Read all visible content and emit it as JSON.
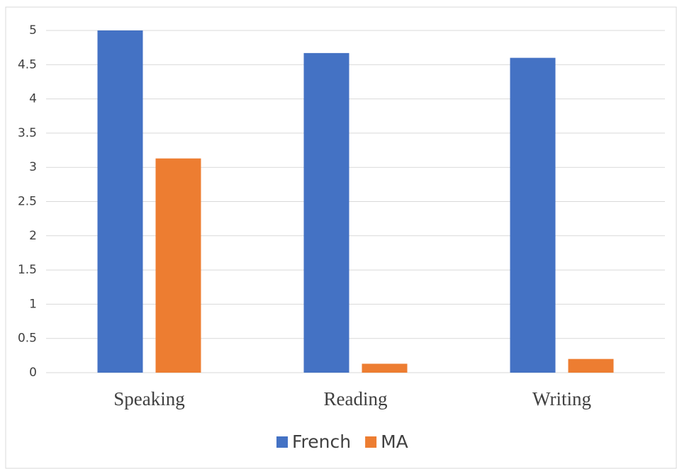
{
  "chart_data": {
    "type": "bar",
    "categories": [
      "Speaking",
      "Reading",
      "Writing"
    ],
    "series": [
      {
        "name": "French",
        "color": "#4472c4",
        "values": [
          5,
          4.67,
          4.6
        ]
      },
      {
        "name": "MA",
        "color": "#ed7d31",
        "values": [
          3.13,
          0.13,
          0.2
        ]
      }
    ],
    "ylim": [
      0,
      5
    ],
    "yticks": [
      0,
      {
        "value": 0.5,
        "label": "0.5"
      },
      1,
      {
        "value": 1.5,
        "label": "1.5"
      },
      2,
      {
        "value": 2.5,
        "label": "2.5"
      },
      3,
      {
        "value": 3.5,
        "label": "3.5"
      },
      4,
      {
        "value": 4.5,
        "label": "4.5"
      },
      5
    ],
    "grid": true,
    "legend": "bottom"
  }
}
